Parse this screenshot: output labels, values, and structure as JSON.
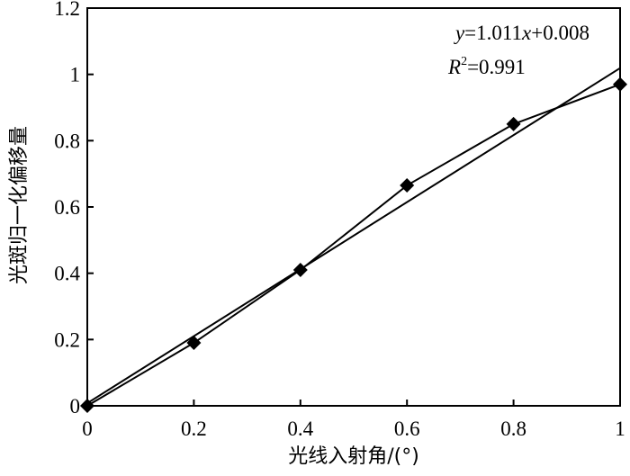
{
  "chart_data": {
    "type": "line",
    "title": "",
    "xlabel": "光线入射角/(°)",
    "ylabel": "光斑归一化偏移量",
    "xlim": [
      0,
      1
    ],
    "ylim": [
      0,
      1.2
    ],
    "x_ticks": [
      "0",
      "0.2",
      "0.4",
      "0.6",
      "0.8",
      "1"
    ],
    "y_ticks": [
      "0",
      "0.2",
      "0.4",
      "0.6",
      "0.8",
      "1",
      "1.2"
    ],
    "grid": false,
    "series": [
      {
        "marker": "diamond",
        "color": "#000000",
        "x": [
          0,
          0.2,
          0.4,
          0.6,
          0.8,
          1.0
        ],
        "y": [
          0.0,
          0.19,
          0.41,
          0.665,
          0.85,
          0.97
        ]
      }
    ],
    "fit_line": {
      "slope": 1.011,
      "intercept": 0.008,
      "x_range": [
        0,
        1
      ],
      "color": "#000000"
    },
    "annotations": {
      "equation": {
        "y": "y",
        "eq_part1": "=1.011",
        "x": "x",
        "eq_part2": "+0.008"
      },
      "r_squared": {
        "r": "R",
        "sup": "2",
        "value": "=0.991"
      }
    }
  }
}
